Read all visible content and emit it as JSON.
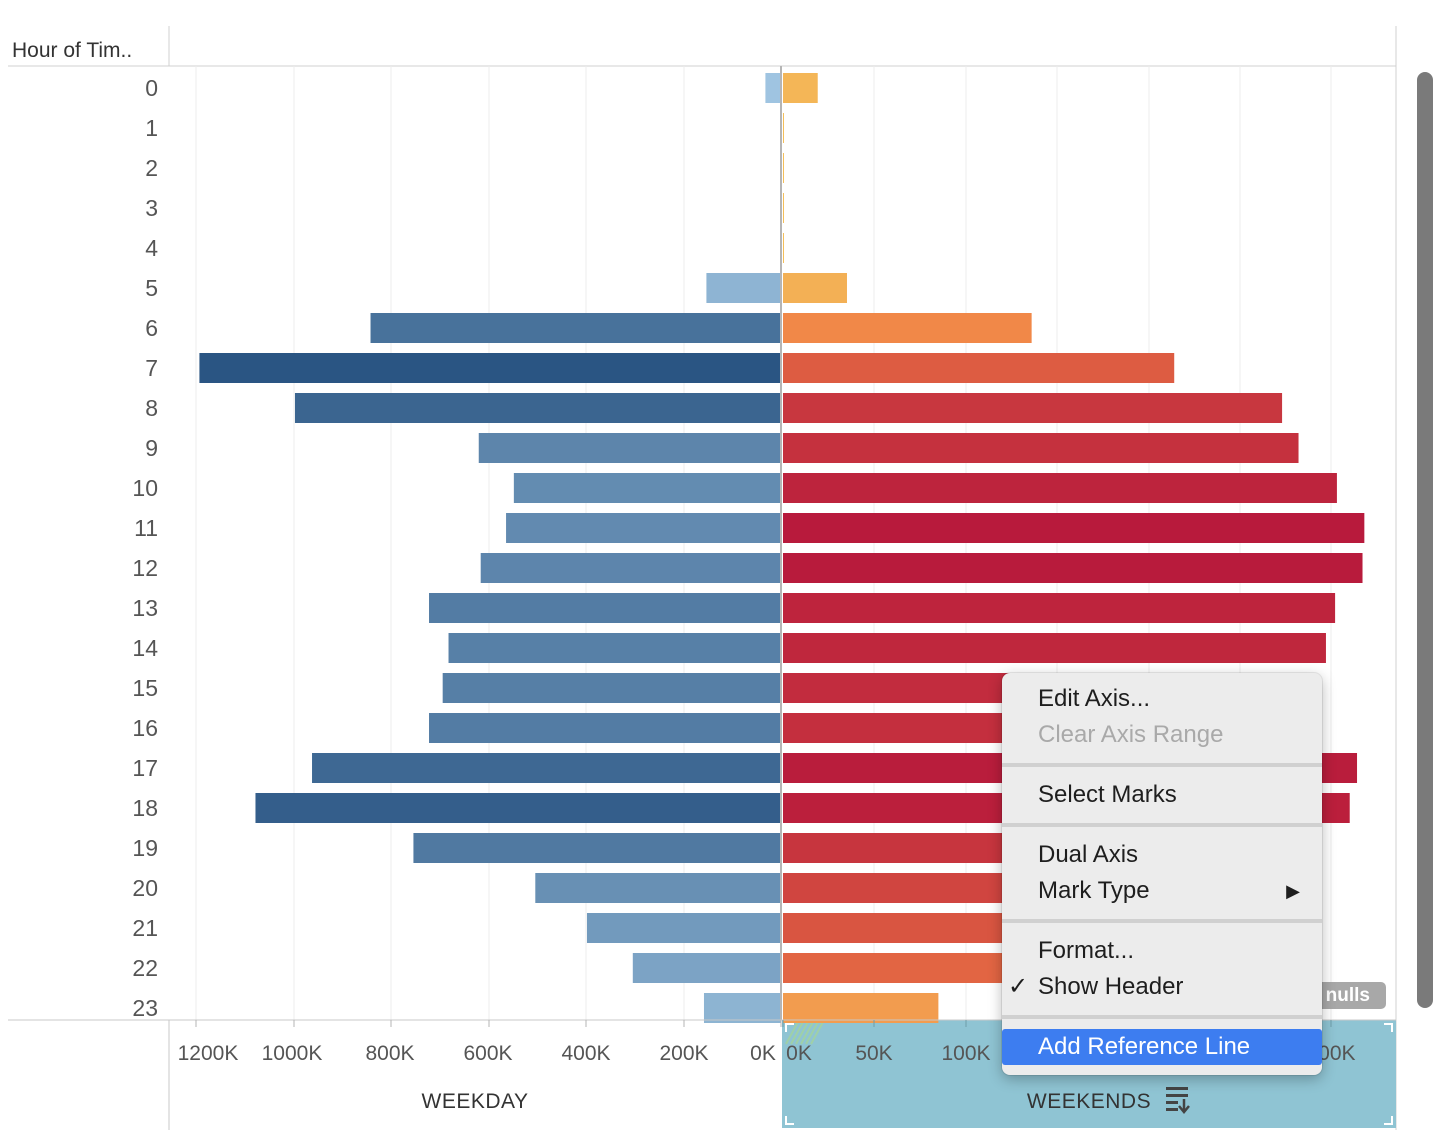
{
  "header": {
    "row_dimension_label": "Hour of Tim.."
  },
  "colors": {
    "weekday_min": "#a6cbe6",
    "weekday_max": "#2a5583",
    "weekend_low": "#f4be5a",
    "weekend_mid": "#f07f45",
    "weekend_max": "#b81a3c",
    "axis_panel_selected": "#8fc4d3",
    "menu_highlight": "#3d7df0"
  },
  "chart_data": {
    "type": "bar",
    "orientation": "horizontal",
    "row_header": "Hour of Tim..",
    "categories": [
      "0",
      "1",
      "2",
      "3",
      "4",
      "5",
      "6",
      "7",
      "8",
      "9",
      "10",
      "11",
      "12",
      "13",
      "14",
      "15",
      "16",
      "17",
      "18",
      "19",
      "20",
      "21",
      "22",
      "23"
    ],
    "series": [
      {
        "name": "WEEKDAY",
        "direction": "left",
        "axis_ticks": [
          "1200K",
          "1000K",
          "800K",
          "600K",
          "400K",
          "200K",
          "0K"
        ],
        "tick_values": [
          1200000,
          1000000,
          800000,
          600000,
          400000,
          200000,
          0
        ],
        "xlim": [
          0,
          1200000
        ],
        "values": [
          32000,
          500,
          500,
          500,
          500,
          153000,
          842000,
          1193000,
          997000,
          620000,
          548000,
          564000,
          616000,
          722000,
          682000,
          694000,
          722000,
          962000,
          1078000,
          754000,
          504000,
          398000,
          304000,
          158000
        ]
      },
      {
        "name": "WEEKENDS",
        "direction": "right",
        "axis_ticks": [
          "0K",
          "50K",
          "100K",
          "300K"
        ],
        "tick_values": [
          0,
          50000,
          100000,
          300000
        ],
        "xlim": [
          0,
          320000
        ],
        "values": [
          19000,
          300,
          300,
          300,
          300,
          35000,
          136000,
          214000,
          273000,
          282000,
          303000,
          318000,
          317000,
          302000,
          297000,
          290000,
          285000,
          314000,
          310000,
          275000,
          250000,
          225000,
          200000,
          85000
        ]
      }
    ],
    "grid": true
  },
  "axis": {
    "weekday_title": "WEEKDAY",
    "weekends_title": "WEEKENDS",
    "weekends_icon": "sort-icon"
  },
  "nulls_badge": "nulls",
  "context_menu": {
    "items": [
      {
        "label": "Edit Axis...",
        "enabled": true
      },
      {
        "label": "Clear Axis Range",
        "enabled": false
      },
      {
        "separator": true
      },
      {
        "label": "Select Marks",
        "enabled": true
      },
      {
        "separator": true
      },
      {
        "label": "Dual Axis",
        "enabled": true
      },
      {
        "label": "Mark Type",
        "enabled": true,
        "submenu": true
      },
      {
        "separator": true
      },
      {
        "label": "Format...",
        "enabled": true
      },
      {
        "label": "Show Header",
        "enabled": true,
        "checked": true
      },
      {
        "separator": true
      },
      {
        "label": "Add Reference Line",
        "enabled": true,
        "highlighted": true
      }
    ],
    "check_glyph": "✓",
    "submenu_glyph": "▶"
  }
}
